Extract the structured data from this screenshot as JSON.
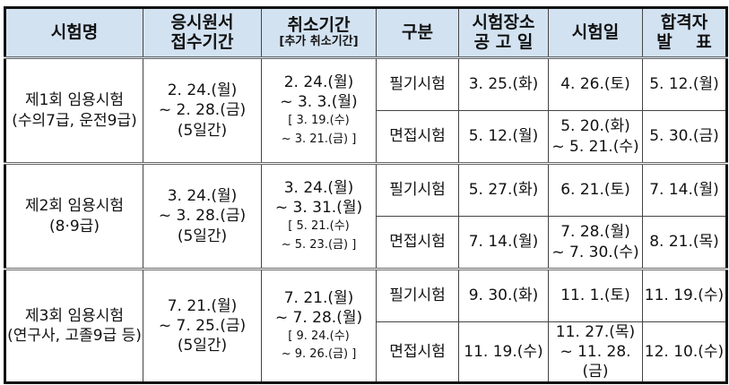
{
  "header": {
    "exam_name": "시험명",
    "reception": [
      "응시원서",
      "접수기간"
    ],
    "cancel": [
      "취소기간",
      "[추가 취소기간]"
    ],
    "category": "구분",
    "venue_notice": [
      "시험장소",
      "공 고 일"
    ],
    "exam_date": "시험일",
    "result": [
      "합격자",
      "발    표"
    ]
  },
  "groups": [
    {
      "name": [
        "제1회 임용시험",
        "(수의7급, 운전9급)"
      ],
      "reception": [
        "2. 24.(월)",
        "~ 2. 28.(금)",
        "(5일간)"
      ],
      "cancel": [
        "2. 24.(월)",
        "~ 3. 3.(월)"
      ],
      "cancel_extra": [
        "[ 3. 19.(수)",
        "~ 3. 21.(금) ]"
      ],
      "rows": [
        {
          "category": "필기시험",
          "venue_notice": "3. 25.(화)",
          "exam_date": [
            "4. 26.(토)"
          ],
          "result": "5. 12.(월)"
        },
        {
          "category": "면접시험",
          "venue_notice": "5. 12.(월)",
          "exam_date": [
            "5. 20.(화)",
            "~ 5. 21.(수)"
          ],
          "result": "5. 30.(금)"
        }
      ]
    },
    {
      "name": [
        "제2회 임용시험",
        "(8·9급)"
      ],
      "reception": [
        "3. 24.(월)",
        "~ 3. 28.(금)",
        "(5일간)"
      ],
      "cancel": [
        "3. 24.(월)",
        "~ 3. 31.(월)"
      ],
      "cancel_extra": [
        "[ 5. 21.(수)",
        "~ 5. 23.(금) ]"
      ],
      "rows": [
        {
          "category": "필기시험",
          "venue_notice": "5. 27.(화)",
          "exam_date": [
            "6. 21.(토)"
          ],
          "result": "7. 14.(월)"
        },
        {
          "category": "면접시험",
          "venue_notice": "7. 14.(월)",
          "exam_date": [
            "7. 28.(월)",
            "~ 7. 30.(수)"
          ],
          "result": "8. 21.(목)"
        }
      ]
    },
    {
      "name": [
        "제3회 임용시험",
        "(연구사, 고졸9급 등)"
      ],
      "reception": [
        "7. 21.(월)",
        "~ 7. 25.(금)",
        "(5일간)"
      ],
      "cancel": [
        "7. 21.(월)",
        "~ 7. 28.(월)"
      ],
      "cancel_extra": [
        "[ 9. 24.(수)",
        "~ 9. 26.(금) ]"
      ],
      "rows": [
        {
          "category": "필기시험",
          "venue_notice": "9. 30.(화)",
          "exam_date": [
            "11. 1.(토)"
          ],
          "result": "11. 19.(수)"
        },
        {
          "category": "면접시험",
          "venue_notice": "11. 19.(수)",
          "exam_date": [
            "11. 27.(목)",
            "~ 11. 28.(금)"
          ],
          "result": "12. 10.(수)"
        }
      ]
    }
  ]
}
